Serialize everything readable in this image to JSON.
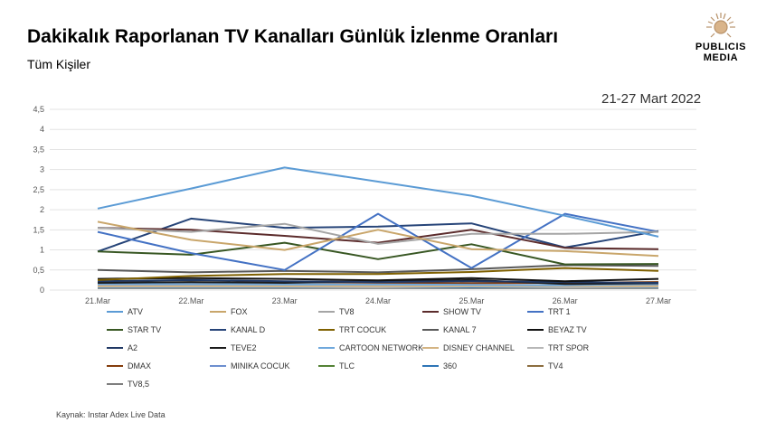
{
  "header": {
    "title": "Dakikalık Raporlanan TV Kanalları Günlük İzlenme Oranları",
    "subtitle": "Tüm Kişiler",
    "date_range": "21-27 Mart 2022"
  },
  "logo": {
    "line1": "PUBLICIS",
    "line2": "MEDIA"
  },
  "footer": {
    "source": "Kaynak: Instar  Adex Live Data"
  },
  "chart_data": {
    "type": "line",
    "categories": [
      "21.Mar",
      "22.Mar",
      "23.Mar",
      "24.Mar",
      "25.Mar",
      "26.Mar",
      "27.Mar"
    ],
    "ylim": [
      0,
      4.5
    ],
    "yticks": [
      "0",
      "0,5",
      "1",
      "1,5",
      "2",
      "2,5",
      "3",
      "3,5",
      "4",
      "4,5"
    ],
    "grid": true,
    "legend_position": "bottom",
    "series": [
      {
        "name": "ATV",
        "color": "#5b9bd5",
        "values": [
          2.03,
          2.53,
          3.05,
          2.7,
          2.35,
          1.85,
          1.33
        ]
      },
      {
        "name": "FOX",
        "color": "#c9a66b",
        "values": [
          1.7,
          1.25,
          1.0,
          1.5,
          1.02,
          0.97,
          0.85
        ]
      },
      {
        "name": "TV8",
        "color": "#a5a5a5",
        "values": [
          1.55,
          1.45,
          1.65,
          1.15,
          1.4,
          1.4,
          1.45
        ]
      },
      {
        "name": "SHOW TV",
        "color": "#5c2c2c",
        "values": [
          1.55,
          1.5,
          1.35,
          1.18,
          1.5,
          1.05,
          1.02
        ]
      },
      {
        "name": "TRT 1",
        "color": "#4472c4",
        "values": [
          1.45,
          0.92,
          0.5,
          1.9,
          0.55,
          1.9,
          1.45
        ]
      },
      {
        "name": "STAR TV",
        "color": "#385723",
        "values": [
          0.96,
          0.88,
          1.18,
          0.77,
          1.14,
          0.64,
          0.65
        ]
      },
      {
        "name": "KANAL D",
        "color": "#264478",
        "values": [
          0.96,
          1.78,
          1.55,
          1.58,
          1.66,
          1.06,
          1.47
        ]
      },
      {
        "name": "TRT COCUK",
        "color": "#7f6000",
        "values": [
          0.25,
          0.35,
          0.4,
          0.4,
          0.45,
          0.55,
          0.48
        ]
      },
      {
        "name": "KANAL 7",
        "color": "#595959",
        "values": [
          0.5,
          0.44,
          0.48,
          0.44,
          0.52,
          0.62,
          0.6
        ]
      },
      {
        "name": "BEYAZ TV",
        "color": "#111111",
        "values": [
          0.28,
          0.3,
          0.28,
          0.24,
          0.3,
          0.22,
          0.28
        ]
      },
      {
        "name": "A2",
        "color": "#203864",
        "values": [
          0.22,
          0.25,
          0.22,
          0.2,
          0.22,
          0.2,
          0.18
        ]
      },
      {
        "name": "TEVE2",
        "color": "#1b1b1b",
        "values": [
          0.18,
          0.2,
          0.18,
          0.22,
          0.25,
          0.15,
          0.17
        ]
      },
      {
        "name": "CARTOON NETWORK",
        "color": "#6fa8dc",
        "values": [
          0.15,
          0.15,
          0.14,
          0.14,
          0.13,
          0.12,
          0.15
        ]
      },
      {
        "name": "DISNEY CHANNEL",
        "color": "#d4b483",
        "values": [
          0.1,
          0.1,
          0.1,
          0.1,
          0.1,
          0.1,
          0.1
        ]
      },
      {
        "name": "TRT SPOR",
        "color": "#b7b7b7",
        "values": [
          0.08,
          0.08,
          0.08,
          0.07,
          0.09,
          0.07,
          0.08
        ]
      },
      {
        "name": "DMAX",
        "color": "#843c0c",
        "values": [
          0.2,
          0.18,
          0.2,
          0.18,
          0.17,
          0.18,
          0.2
        ]
      },
      {
        "name": "MINIKA COCUK",
        "color": "#6d8fcf",
        "values": [
          0.12,
          0.12,
          0.12,
          0.12,
          0.12,
          0.12,
          0.12
        ]
      },
      {
        "name": "TLC",
        "color": "#548235",
        "values": [
          0.1,
          0.09,
          0.09,
          0.09,
          0.09,
          0.1,
          0.09
        ]
      },
      {
        "name": "360",
        "color": "#2e75b6",
        "values": [
          0.06,
          0.06,
          0.06,
          0.06,
          0.06,
          0.06,
          0.06
        ]
      },
      {
        "name": "TV4",
        "color": "#8c6d3f",
        "values": [
          0.05,
          0.05,
          0.05,
          0.05,
          0.05,
          0.05,
          0.05
        ]
      },
      {
        "name": "TV8,5",
        "color": "#7f7f7f",
        "values": [
          0.07,
          0.06,
          0.07,
          0.06,
          0.07,
          0.06,
          0.07
        ]
      }
    ]
  }
}
